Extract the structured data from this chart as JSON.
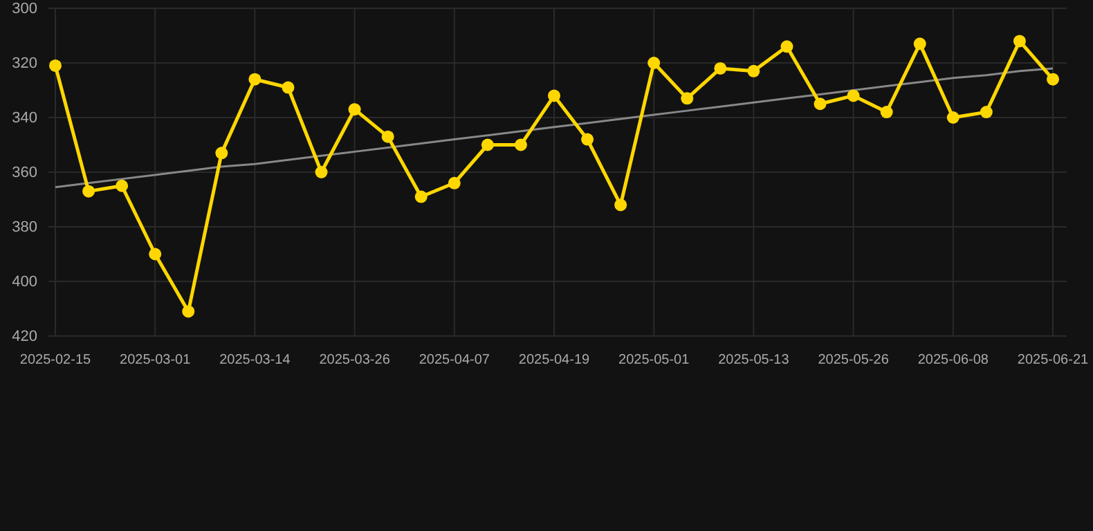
{
  "chart_data": {
    "type": "line",
    "categories": [
      "2025-02-15",
      null,
      null,
      "2025-03-01",
      null,
      null,
      "2025-03-14",
      null,
      null,
      "2025-03-26",
      null,
      null,
      "2025-04-07",
      null,
      null,
      "2025-04-19",
      null,
      null,
      "2025-05-01",
      null,
      null,
      "2025-05-13",
      null,
      null,
      "2025-05-26",
      null,
      null,
      "2025-06-08",
      null,
      null,
      "2025-06-21"
    ],
    "series": [
      {
        "color": "#ffd700",
        "marker": "circle",
        "values": [
          321,
          367,
          365,
          390,
          411,
          353,
          326,
          329,
          360,
          337,
          347,
          369,
          364,
          350,
          350,
          332,
          348,
          372,
          320,
          333,
          322,
          323,
          314,
          335,
          332,
          338,
          313,
          340,
          338,
          312,
          326
        ]
      },
      {
        "type": "line",
        "color": "#888888",
        "marker": "none",
        "values": [
          365.5,
          364,
          362.5,
          361,
          359.5,
          358,
          357,
          355.5,
          354,
          352.5,
          351,
          349.5,
          348,
          346.5,
          345,
          343.5,
          342,
          340.5,
          339,
          337.5,
          336,
          334.5,
          333,
          331.5,
          330,
          328.5,
          327,
          325.5,
          324.5,
          323,
          322
        ]
      }
    ],
    "ylim": [
      420,
      300
    ],
    "yticks": [
      300,
      320,
      340,
      360,
      380,
      400,
      420
    ],
    "grid": true
  }
}
